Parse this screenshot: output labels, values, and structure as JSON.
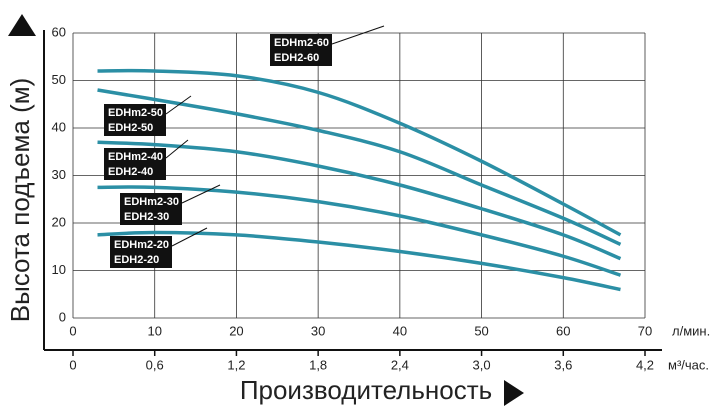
{
  "chart_data": {
    "type": "line",
    "ylabel": "Высота подъема (м)",
    "xlabel": "Производительность",
    "xunit": "л/мин.",
    "x2unit": "м³/час.",
    "x": [
      3,
      10,
      20,
      30,
      40,
      50,
      60,
      67
    ],
    "series": [
      {
        "name": "EDHm2-60",
        "name2": "EDH2-60",
        "color": "#2b8fa5",
        "values": [
          52,
          52,
          51,
          47.5,
          41,
          33,
          24,
          17.5
        ]
      },
      {
        "name": "EDHm2-50",
        "name2": "EDH2-50",
        "color": "#2b8fa5",
        "values": [
          48,
          46,
          43,
          39.5,
          35,
          28,
          21,
          15.5
        ]
      },
      {
        "name": "EDHm2-40",
        "name2": "EDH2-40",
        "color": "#2b8fa5",
        "values": [
          37,
          36.5,
          35,
          32,
          28,
          23,
          17.5,
          12.5
        ]
      },
      {
        "name": "EDHm2-30",
        "name2": "EDH2-30",
        "color": "#2b8fa5",
        "values": [
          27.5,
          27.5,
          26.5,
          24.5,
          21.5,
          17.5,
          13,
          9
        ]
      },
      {
        "name": "EDHm2-20",
        "name2": "EDH2-20",
        "color": "#2b8fa5",
        "values": [
          17.5,
          18,
          17.5,
          16,
          14,
          11.5,
          8.5,
          6
        ]
      }
    ],
    "xlim": [
      0,
      70
    ],
    "xticks": [
      0,
      10,
      20,
      30,
      40,
      50,
      60,
      70
    ],
    "x2lim": [
      0,
      4.2
    ],
    "x2ticks": [
      0,
      {
        "value": 0.6,
        "label": "0,6"
      },
      {
        "value": 1.2,
        "label": "1,2"
      },
      {
        "value": 1.8,
        "label": "1,8"
      },
      {
        "value": 2.4,
        "label": "2,4"
      },
      {
        "value": 3.0,
        "label": "3,0"
      },
      {
        "value": 3.6,
        "label": "3,6"
      },
      {
        "value": 4.2,
        "label": "4,2"
      }
    ],
    "ylim": [
      0,
      60
    ],
    "yticks": [
      0,
      10,
      20,
      30,
      40,
      50,
      60
    ],
    "grid": true
  }
}
